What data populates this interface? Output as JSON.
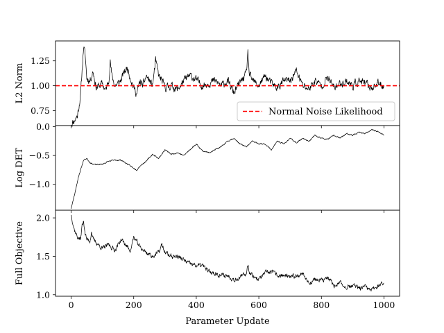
{
  "figure": {
    "xlabel": "Parameter Update"
  },
  "chart_data": [
    {
      "type": "line",
      "title": "",
      "xlabel": "",
      "ylabel": "L2 Norm",
      "xlim": [
        -50,
        1050
      ],
      "ylim": [
        0.6,
        1.45
      ],
      "yticks": [
        0.75,
        1.0,
        1.25
      ],
      "ytick_labels": [
        "0.75",
        "1.00",
        "1.25"
      ],
      "show_xticklabels": false,
      "hline": {
        "y": 1.0,
        "color": "#ff0000",
        "style": "dashed",
        "name": "Normal Noise Likelihood"
      },
      "legend": {
        "location": "lower-right",
        "entries": [
          "Normal Noise Likelihood"
        ]
      },
      "series": [
        {
          "color": "#000000",
          "style": "noisy",
          "noise": 0.045,
          "seed": 11,
          "x": [
            0,
            10,
            20,
            30,
            35,
            40,
            45,
            50,
            60,
            70,
            80,
            90,
            100,
            110,
            120,
            125,
            130,
            140,
            150,
            160,
            170,
            180,
            190,
            200,
            210,
            220,
            230,
            240,
            250,
            260,
            270,
            280,
            290,
            300,
            320,
            340,
            360,
            380,
            400,
            420,
            440,
            460,
            480,
            500,
            520,
            540,
            560,
            565,
            570,
            580,
            600,
            620,
            640,
            660,
            680,
            700,
            720,
            740,
            760,
            780,
            800,
            820,
            840,
            860,
            880,
            900,
            920,
            940,
            960,
            980,
            1000
          ],
          "y": [
            0.62,
            0.65,
            0.7,
            0.9,
            1.15,
            1.4,
            1.3,
            1.08,
            1.05,
            1.15,
            0.98,
            1.0,
            1.02,
            0.95,
            1.05,
            1.25,
            1.1,
            1.0,
            1.02,
            1.06,
            1.14,
            1.18,
            1.08,
            0.98,
            0.92,
            1.04,
            1.0,
            1.1,
            1.05,
            1.0,
            1.25,
            1.1,
            1.05,
            0.98,
            1.0,
            0.96,
            1.05,
            1.1,
            1.06,
            1.0,
            1.03,
            1.05,
            1.0,
            1.05,
            0.93,
            1.03,
            1.12,
            1.33,
            1.1,
            1.05,
            1.0,
            1.1,
            1.02,
            0.98,
            1.05,
            1.05,
            1.15,
            1.0,
            0.97,
            1.05,
            1.0,
            1.08,
            0.98,
            1.02,
            1.05,
            1.0,
            1.05,
            1.02,
            0.98,
            1.02,
            1.0
          ]
        }
      ]
    },
    {
      "type": "line",
      "title": "",
      "xlabel": "",
      "ylabel": "Log DET",
      "xlim": [
        -50,
        1050
      ],
      "ylim": [
        -1.45,
        0.02
      ],
      "yticks": [
        -1.0,
        -0.5,
        0.0
      ],
      "ytick_labels": [
        "−1.0",
        "−0.5",
        "0.0"
      ],
      "show_xticklabels": false,
      "series": [
        {
          "color": "#000000",
          "style": "noisy",
          "noise": 0.012,
          "seed": 23,
          "x": [
            0,
            10,
            20,
            30,
            40,
            50,
            60,
            70,
            80,
            100,
            120,
            140,
            160,
            180,
            200,
            210,
            220,
            240,
            260,
            280,
            300,
            320,
            340,
            360,
            380,
            400,
            420,
            440,
            460,
            480,
            500,
            520,
            540,
            560,
            580,
            600,
            620,
            640,
            660,
            680,
            700,
            720,
            740,
            760,
            780,
            800,
            820,
            840,
            860,
            880,
            900,
            920,
            940,
            960,
            980,
            1000
          ],
          "y": [
            -1.42,
            -1.2,
            -0.95,
            -0.75,
            -0.58,
            -0.55,
            -0.62,
            -0.65,
            -0.66,
            -0.65,
            -0.6,
            -0.58,
            -0.58,
            -0.65,
            -0.72,
            -0.75,
            -0.68,
            -0.6,
            -0.48,
            -0.55,
            -0.4,
            -0.48,
            -0.45,
            -0.5,
            -0.4,
            -0.3,
            -0.42,
            -0.45,
            -0.4,
            -0.35,
            -0.25,
            -0.2,
            -0.3,
            -0.35,
            -0.25,
            -0.3,
            -0.3,
            -0.4,
            -0.25,
            -0.3,
            -0.2,
            -0.28,
            -0.2,
            -0.25,
            -0.15,
            -0.2,
            -0.22,
            -0.15,
            -0.2,
            -0.12,
            -0.15,
            -0.1,
            -0.12,
            -0.05,
            -0.08,
            -0.15
          ]
        }
      ]
    },
    {
      "type": "line",
      "title": "",
      "xlabel": "Parameter Update",
      "ylabel": "Full Objective",
      "xlim": [
        -50,
        1050
      ],
      "ylim": [
        0.98,
        2.1
      ],
      "yticks": [
        1.0,
        1.5,
        2.0
      ],
      "ytick_labels": [
        "1.0",
        "1.5",
        "2.0"
      ],
      "xticks": [
        0,
        200,
        400,
        600,
        800,
        1000
      ],
      "xtick_labels": [
        "0",
        "200",
        "400",
        "600",
        "800",
        "1000"
      ],
      "show_xticklabels": true,
      "series": [
        {
          "color": "#000000",
          "style": "noisy",
          "noise": 0.035,
          "seed": 37,
          "x": [
            0,
            10,
            20,
            30,
            35,
            40,
            45,
            50,
            60,
            65,
            70,
            80,
            100,
            120,
            140,
            160,
            180,
            190,
            200,
            220,
            240,
            260,
            280,
            290,
            300,
            320,
            340,
            360,
            380,
            400,
            420,
            440,
            460,
            480,
            500,
            520,
            540,
            560,
            565,
            570,
            580,
            600,
            620,
            640,
            660,
            680,
            700,
            720,
            740,
            760,
            780,
            800,
            820,
            840,
            860,
            880,
            900,
            920,
            940,
            960,
            980,
            1000
          ],
          "y": [
            2.05,
            1.85,
            1.75,
            1.72,
            1.9,
            1.95,
            1.8,
            1.72,
            1.7,
            1.82,
            1.72,
            1.68,
            1.6,
            1.65,
            1.58,
            1.72,
            1.62,
            1.58,
            1.75,
            1.62,
            1.55,
            1.5,
            1.55,
            1.65,
            1.55,
            1.5,
            1.5,
            1.45,
            1.4,
            1.38,
            1.38,
            1.3,
            1.28,
            1.25,
            1.25,
            1.2,
            1.22,
            1.28,
            1.4,
            1.3,
            1.25,
            1.2,
            1.28,
            1.3,
            1.25,
            1.25,
            1.22,
            1.25,
            1.28,
            1.15,
            1.2,
            1.18,
            1.22,
            1.12,
            1.15,
            1.1,
            1.12,
            1.08,
            1.1,
            1.05,
            1.12,
            1.15
          ]
        }
      ]
    }
  ]
}
